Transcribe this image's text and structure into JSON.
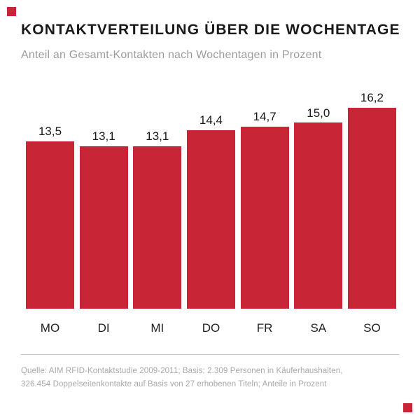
{
  "chart_data": {
    "type": "bar",
    "title": "KONTAKTVERTEILUNG ÜBER DIE WOCHENTAGE",
    "subtitle": "Anteil an Gesamt-Kontakten nach Wochentagen in Prozent",
    "categories": [
      "MO",
      "DI",
      "MI",
      "DO",
      "FR",
      "SA",
      "SO"
    ],
    "values": [
      13.5,
      13.1,
      13.1,
      14.4,
      14.7,
      15.0,
      16.2
    ],
    "value_labels": [
      "13,5",
      "13,1",
      "13,1",
      "14,4",
      "14,7",
      "15,0",
      "16,2"
    ],
    "xlabel": "",
    "ylabel": "",
    "ylim": [
      0,
      17
    ],
    "grid": false,
    "legend": false,
    "bar_color": "#C82536",
    "accent_color": "#C82536"
  },
  "source": {
    "line1": "Quelle: AIM RFID-Kontaktstudie 2009-2011; Basis: 2.309 Personen in Käuferhaushalten,",
    "line2": "326.454 Doppelseitenkontakte auf Basis von 27 erhobenen Titeln; Anteile in Prozent"
  }
}
